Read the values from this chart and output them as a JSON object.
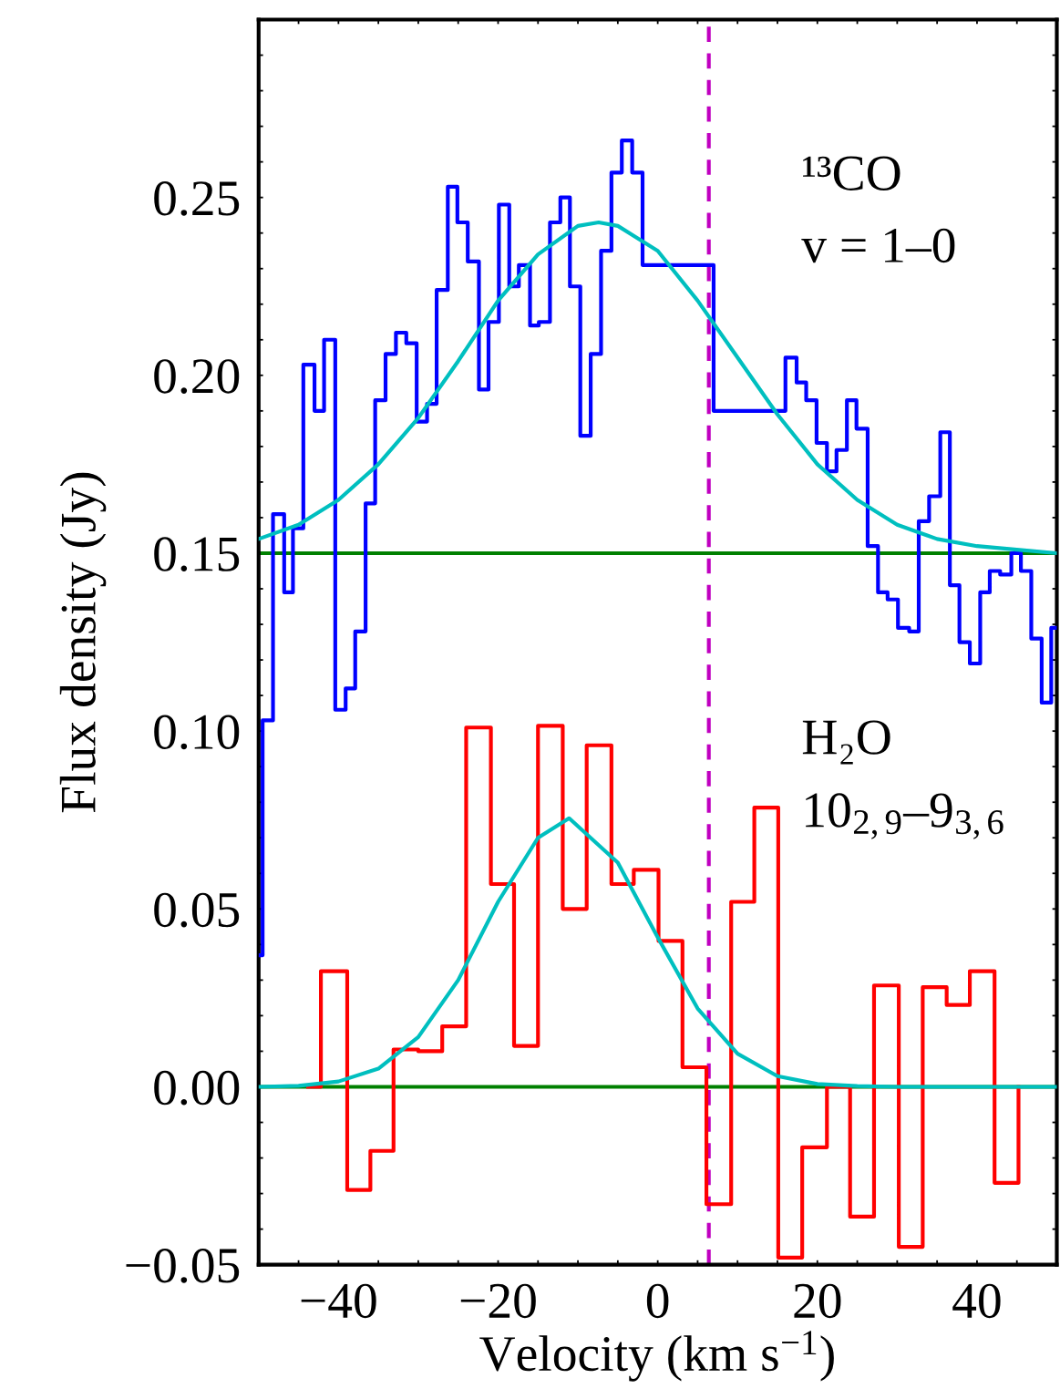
{
  "chart_data": {
    "type": "step",
    "xlabel": "Velocity (km s$^{−1}$)",
    "ylabel": "Flux density (Jy)",
    "xlim": [
      -50,
      50
    ],
    "ylim": [
      -0.05,
      0.3
    ],
    "xticks": [
      {
        "value": -50,
        "label": null
      },
      {
        "value": -45,
        "label": null
      },
      {
        "value": -40,
        "label": "−40"
      },
      {
        "value": -35,
        "label": null
      },
      {
        "value": -30,
        "label": null
      },
      {
        "value": -25,
        "label": null
      },
      {
        "value": -20,
        "label": "−20"
      },
      {
        "value": -15,
        "label": null
      },
      {
        "value": -10,
        "label": null
      },
      {
        "value": -5,
        "label": null
      },
      {
        "value": 0,
        "label": "0"
      },
      {
        "value": 5,
        "label": null
      },
      {
        "value": 10,
        "label": null
      },
      {
        "value": 15,
        "label": null
      },
      {
        "value": 20,
        "label": "20"
      },
      {
        "value": 25,
        "label": null
      },
      {
        "value": 30,
        "label": null
      },
      {
        "value": 35,
        "label": null
      },
      {
        "value": 40,
        "label": "40"
      },
      {
        "value": 45,
        "label": null
      }
    ],
    "yticks": [
      {
        "value": -0.05,
        "label": "−0.05"
      },
      {
        "value": -0.04,
        "label": null
      },
      {
        "value": -0.03,
        "label": null
      },
      {
        "value": -0.02,
        "label": null
      },
      {
        "value": -0.01,
        "label": null
      },
      {
        "value": 0.0,
        "label": "0.00"
      },
      {
        "value": 0.01,
        "label": null
      },
      {
        "value": 0.02,
        "label": null
      },
      {
        "value": 0.03,
        "label": null
      },
      {
        "value": 0.04,
        "label": null
      },
      {
        "value": 0.05,
        "label": "0.05"
      },
      {
        "value": 0.06,
        "label": null
      },
      {
        "value": 0.07,
        "label": null
      },
      {
        "value": 0.08,
        "label": null
      },
      {
        "value": 0.09,
        "label": null
      },
      {
        "value": 0.1,
        "label": "0.10"
      },
      {
        "value": 0.11,
        "label": null
      },
      {
        "value": 0.12,
        "label": null
      },
      {
        "value": 0.13,
        "label": null
      },
      {
        "value": 0.14,
        "label": null
      },
      {
        "value": 0.15,
        "label": "0.15"
      },
      {
        "value": 0.16,
        "label": null
      },
      {
        "value": 0.17,
        "label": null
      },
      {
        "value": 0.18,
        "label": null
      },
      {
        "value": 0.19,
        "label": null
      },
      {
        "value": 0.2,
        "label": "0.20"
      },
      {
        "value": 0.21,
        "label": null
      },
      {
        "value": 0.22,
        "label": null
      },
      {
        "value": 0.23,
        "label": null
      },
      {
        "value": 0.24,
        "label": null
      },
      {
        "value": 0.25,
        "label": "0.25"
      },
      {
        "value": 0.26,
        "label": null
      },
      {
        "value": 0.27,
        "label": null
      },
      {
        "value": 0.28,
        "label": null
      },
      {
        "value": 0.29,
        "label": null
      }
    ],
    "grid": false,
    "legend": false,
    "series": [
      {
        "color": "#0000ff",
        "x": [
          -49.8,
          -49.5,
          -48.2,
          -46.8,
          -45.7,
          -44.4,
          -43.0,
          -41.8,
          -40.4,
          -39.1,
          -37.9,
          -36.6,
          -35.4,
          -34.1,
          -32.8,
          -31.5,
          -30.2,
          -28.9,
          -27.7,
          -26.3,
          -25.1,
          -23.8,
          -22.4,
          -21.2,
          -19.9,
          -18.6,
          -17.4,
          -16.0,
          -14.9,
          -13.5,
          -12.2,
          -11.0,
          -9.7,
          -8.4,
          -7.1,
          -5.8,
          -4.5,
          -3.2,
          -1.9,
          7.0,
          16.0,
          17.4,
          18.6,
          19.9,
          21.2,
          22.4,
          23.7,
          24.9,
          26.3,
          27.6,
          28.8,
          30.1,
          31.5,
          32.7,
          34.0,
          35.4,
          36.6,
          37.8,
          39.1,
          40.4,
          41.6,
          42.9,
          44.3,
          45.5,
          46.8,
          48.1,
          49.3,
          50.0
        ],
        "values": [
          0.037,
          0.103,
          0.161,
          0.139,
          0.157,
          0.203,
          0.19,
          0.21,
          0.106,
          0.112,
          0.128,
          0.164,
          0.193,
          0.206,
          0.212,
          0.209,
          0.187,
          0.192,
          0.224,
          0.253,
          0.243,
          0.232,
          0.196,
          0.215,
          0.248,
          0.225,
          0.231,
          0.214,
          0.215,
          0.243,
          0.25,
          0.225,
          0.183,
          0.206,
          0.235,
          0.257,
          0.266,
          0.257,
          0.231,
          0.19,
          0.205,
          0.198,
          0.193,
          0.181,
          0.173,
          0.179,
          0.193,
          0.185,
          0.152,
          0.139,
          0.137,
          0.129,
          0.128,
          0.159,
          0.166,
          0.184,
          0.141,
          0.125,
          0.119,
          0.139,
          0.145,
          0.144,
          0.15,
          0.145,
          0.126,
          0.108,
          0.129,
          0.129
        ]
      },
      {
        "color": "#ff0000",
        "x": [
          -43.8,
          -42.2,
          -38.9,
          -36.0,
          -33.1,
          -30.0,
          -27.0,
          -24.0,
          -20.9,
          -18.0,
          -15.0,
          -11.9,
          -8.9,
          -5.8,
          -3.0,
          0.1,
          3.1,
          6.1,
          9.2,
          12.1,
          15.1,
          18.1,
          21.2,
          24.1,
          27.1,
          30.2,
          33.2,
          36.2,
          39.1,
          42.2,
          45.2
        ],
        "values": [
          0.0,
          0.0325,
          -0.029,
          -0.018,
          0.0105,
          0.01,
          0.017,
          0.101,
          0.057,
          0.0115,
          0.1015,
          0.05,
          0.096,
          0.057,
          0.061,
          0.041,
          0.0055,
          -0.033,
          0.052,
          0.0785,
          -0.048,
          -0.017,
          0.0,
          -0.0365,
          0.0285,
          -0.045,
          0.028,
          0.023,
          0.0325,
          -0.027,
          0.0
        ]
      },
      {
        "type": "line",
        "color": "#00bfbf",
        "x": [
          -50,
          -45,
          -40,
          -35,
          -30,
          -25,
          -20,
          -15,
          -10,
          -7.4,
          -5,
          0,
          5,
          10,
          15,
          20,
          25,
          30,
          35,
          40,
          45,
          50
        ],
        "values": [
          0.154,
          0.158,
          0.165,
          0.175,
          0.188,
          0.204,
          0.221,
          0.234,
          0.242,
          0.243,
          0.242,
          0.235,
          0.221,
          0.205,
          0.189,
          0.175,
          0.165,
          0.158,
          0.154,
          0.152,
          0.151,
          0.15
        ]
      },
      {
        "type": "line",
        "color": "#00bfbf",
        "x": [
          -50,
          -45,
          -40,
          -35,
          -30,
          -25,
          -20,
          -15,
          -11.1,
          -5,
          0,
          5,
          10,
          15,
          20,
          25,
          30,
          40,
          50
        ],
        "values": [
          0.0,
          0.0003,
          0.0015,
          0.0051,
          0.014,
          0.03,
          0.052,
          0.07,
          0.0755,
          0.063,
          0.042,
          0.022,
          0.0093,
          0.003,
          0.0008,
          0.0002,
          0.0,
          0.0,
          0.0
        ]
      }
    ],
    "ref_lines": [
      {
        "axis": "y",
        "value": 0.15,
        "color": "#008000",
        "line_style": "solid"
      },
      {
        "axis": "y",
        "value": 0.0,
        "color": "#008000",
        "line_style": "solid"
      },
      {
        "axis": "x",
        "value": 6.4,
        "color": "#c000c0",
        "line_style": "dashed"
      }
    ],
    "annotations": [
      "¹³CO",
      "v = 1–0",
      "H₂O",
      "10$_{2,9}$–9$_{3,6}$"
    ]
  }
}
